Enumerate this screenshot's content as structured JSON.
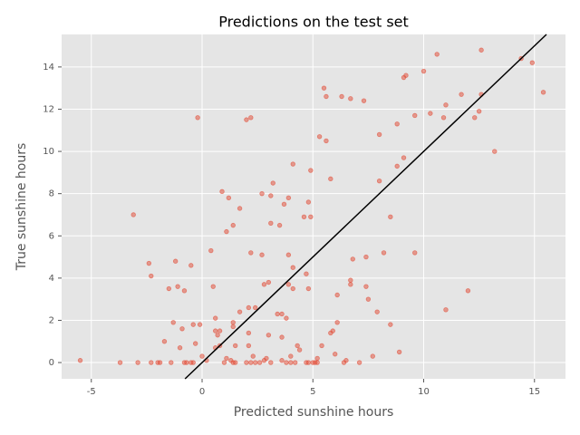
{
  "chart_data": {
    "type": "scatter",
    "title": "Predictions on the test set",
    "x_label": "Predicted sunshine hours",
    "y_label": "True sunshine hours",
    "color": "#E24A33",
    "grid": true,
    "xlim": [
      -6.34,
      16.4
    ],
    "ylim": [
      -0.77,
      15.54
    ],
    "xticks": [
      -5,
      0,
      5,
      10,
      15
    ],
    "yticks": [
      0,
      2,
      4,
      6,
      8,
      10,
      12,
      14
    ],
    "reference_line": {
      "x": [
        -0.77,
        15.54
      ],
      "y": [
        -0.77,
        15.54
      ],
      "color": "#000000"
    },
    "x": [
      -5.5,
      -3.7,
      -2.9,
      -3.1,
      -2.4,
      -2.3,
      -2.3,
      -2.0,
      -1.9,
      -1.7,
      -1.5,
      -1.4,
      -1.3,
      -1.2,
      -1.1,
      -1.0,
      -0.9,
      -0.8,
      -0.8,
      -0.7,
      -0.5,
      -0.5,
      -0.4,
      -0.4,
      -0.3,
      -0.2,
      -0.1,
      0,
      0.2,
      0.4,
      0.5,
      0.6,
      0.6,
      0.6,
      0.7,
      0.8,
      0.8,
      0.9,
      1.0,
      1.1,
      1.1,
      1.2,
      1.3,
      1.4,
      1.4,
      1.4,
      1.4,
      1.5,
      1.5,
      1.7,
      1.7,
      2.0,
      2.0,
      2.1,
      2.1,
      2.1,
      2.2,
      2.2,
      2.2,
      2.3,
      2.4,
      2.4,
      2.6,
      2.7,
      2.7,
      2.8,
      2.8,
      2.9,
      3.0,
      3.0,
      3.1,
      3.1,
      3.1,
      3.2,
      3.4,
      3.5,
      3.6,
      3.6,
      3.6,
      3.7,
      3.8,
      3.8,
      3.9,
      3.9,
      3.9,
      4.0,
      4.0,
      4.1,
      4.1,
      4.1,
      4.2,
      4.3,
      4.4,
      4.6,
      4.7,
      4.7,
      4.8,
      4.8,
      4.8,
      4.9,
      4.9,
      5.0,
      5.1,
      5.2,
      5.2,
      5.3,
      5.4,
      5.5,
      5.6,
      5.6,
      5.8,
      5.8,
      5.9,
      6.0,
      6.1,
      6.1,
      6.3,
      6.4,
      6.5,
      6.7,
      6.7,
      6.7,
      6.8,
      7.1,
      7.3,
      7.4,
      7.4,
      7.5,
      7.7,
      7.9,
      8.0,
      8.0,
      8.2,
      8.5,
      8.5,
      8.8,
      8.8,
      8.9,
      9.1,
      9.2,
      9.1,
      9.6,
      9.6,
      10.0,
      10.3,
      10.6,
      10.9,
      11.0,
      11.0,
      11.7,
      12.0,
      12.3,
      12.5,
      12.6,
      12.6,
      13.2,
      14.4,
      14.9,
      15.4
    ],
    "values": [
      0.1,
      0,
      0,
      7.0,
      4.7,
      4.1,
      0,
      0,
      0,
      1.0,
      3.5,
      0,
      1.9,
      4.8,
      3.6,
      0.7,
      1.6,
      3.4,
      0,
      0,
      4.6,
      0,
      0,
      1.8,
      0.9,
      11.6,
      1.8,
      0.3,
      0.1,
      5.3,
      3.6,
      0.7,
      1.5,
      2.1,
      1.3,
      1.5,
      0.8,
      8.1,
      0,
      6.2,
      0.2,
      7.8,
      0.1,
      6.5,
      1.9,
      1.7,
      0,
      0.8,
      0,
      7.3,
      2.4,
      11.5,
      0,
      2.6,
      0.8,
      1.4,
      11.6,
      5.2,
      0,
      0.3,
      2.6,
      0,
      0,
      5.1,
      8.0,
      3.7,
      0.1,
      0.2,
      1.3,
      3.8,
      6.6,
      7.9,
      0,
      8.5,
      2.3,
      6.5,
      2.3,
      1.2,
      0.1,
      7.5,
      2.1,
      0,
      7.8,
      3.7,
      5.1,
      0.3,
      0,
      9.4,
      4.5,
      3.5,
      0,
      0.8,
      0.6,
      6.9,
      4.2,
      0,
      7.6,
      3.5,
      0,
      9.1,
      6.9,
      0,
      0,
      0.2,
      0,
      10.7,
      0.8,
      13.0,
      10.5,
      12.6,
      8.7,
      1.4,
      1.5,
      0.4,
      3.2,
      1.9,
      12.6,
      0,
      0.1,
      12.5,
      3.7,
      3.9,
      4.9,
      0,
      12.4,
      5.0,
      3.6,
      3.0,
      0.3,
      2.4,
      10.8,
      8.6,
      5.2,
      1.8,
      6.9,
      11.3,
      9.3,
      0.5,
      13.5,
      13.6,
      9.7,
      11.7,
      5.2,
      13.8,
      11.8,
      14.6,
      11.6,
      12.2,
      2.5,
      12.7,
      3.4,
      11.6,
      11.9,
      12.7,
      14.8,
      10.0,
      14.4,
      14.2,
      12.8
    ]
  }
}
